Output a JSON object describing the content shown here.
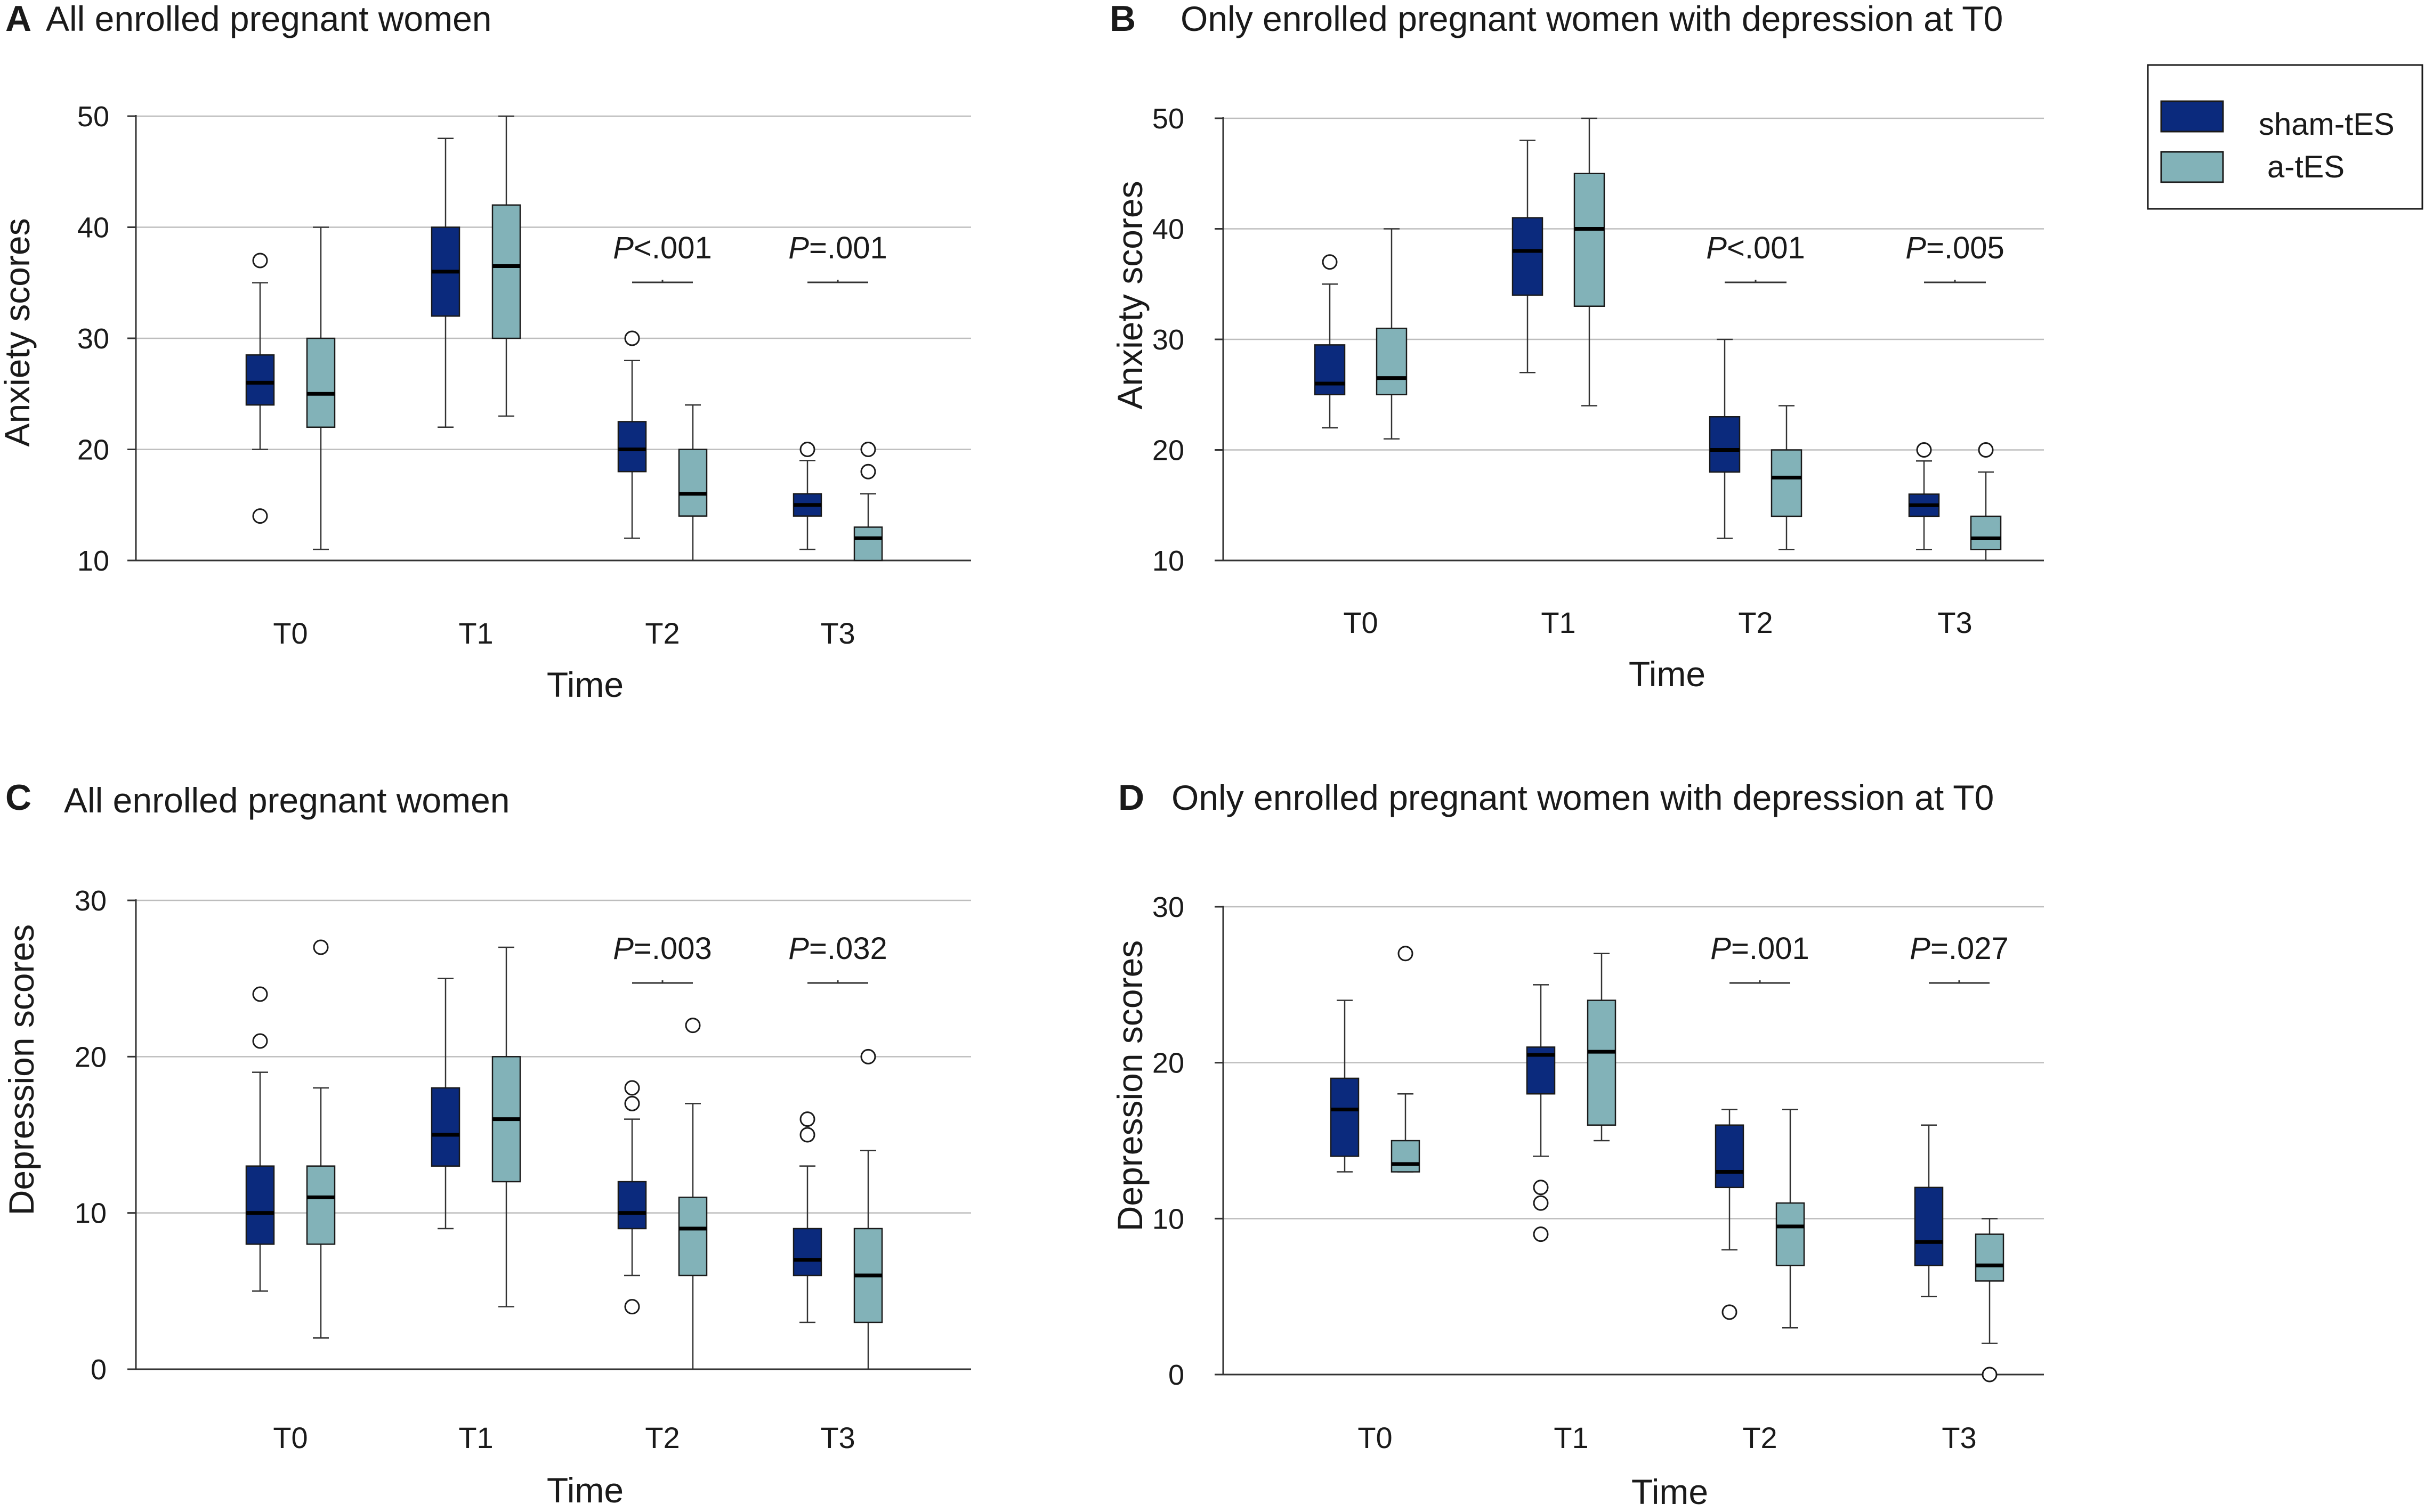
{
  "legend": {
    "items": [
      {
        "name": "sham-tES",
        "color": "#0b2a7d"
      },
      {
        "name": "a-tES",
        "color": "#82b2b8"
      }
    ]
  },
  "chart_data": [
    {
      "panel": "A",
      "type": "boxplot",
      "title": "All enrolled pregnant women",
      "xlabel": "Time",
      "ylabel": "Anxiety scores",
      "categories": [
        "T0",
        "T1",
        "T2",
        "T3"
      ],
      "ylim": [
        10,
        50
      ],
      "yticks": [
        10,
        20,
        30,
        40,
        50
      ],
      "series": [
        {
          "name": "sham-tES",
          "color": "#0b2a7d",
          "boxes": [
            {
              "min": 20,
              "q1": 24,
              "median": 26,
              "q3": 28.5,
              "max": 35,
              "outliers": [
                37,
                14
              ]
            },
            {
              "min": 22,
              "q1": 32,
              "median": 36,
              "q3": 40,
              "max": 48,
              "outliers": []
            },
            {
              "min": 12,
              "q1": 18,
              "median": 20,
              "q3": 22.5,
              "max": 28,
              "outliers": [
                30
              ]
            },
            {
              "min": 11,
              "q1": 14,
              "median": 15,
              "q3": 16,
              "max": 19,
              "outliers": [
                20
              ]
            }
          ]
        },
        {
          "name": "a-tES",
          "color": "#82b2b8",
          "boxes": [
            {
              "min": 11,
              "q1": 22,
              "median": 25,
              "q3": 30,
              "max": 40,
              "outliers": []
            },
            {
              "min": 23,
              "q1": 30,
              "median": 36.5,
              "q3": 42,
              "max": 50,
              "outliers": []
            },
            {
              "min": 10,
              "q1": 14,
              "median": 16,
              "q3": 20,
              "max": 24,
              "outliers": []
            },
            {
              "min": 10,
              "q1": 10,
              "median": 12,
              "q3": 13,
              "max": 16,
              "outliers": [
                20,
                18
              ]
            }
          ]
        }
      ],
      "annotations": [
        {
          "category_index": 2,
          "prefix": "P",
          "text": "<.001"
        },
        {
          "category_index": 3,
          "prefix": "P",
          "text": "=.001"
        }
      ]
    },
    {
      "panel": "B",
      "type": "boxplot",
      "title": "Only enrolled pregnant women with depression at T0",
      "xlabel": "Time",
      "ylabel": "Anxiety scores",
      "categories": [
        "T0",
        "T1",
        "T2",
        "T3"
      ],
      "ylim": [
        10,
        50
      ],
      "yticks": [
        10,
        20,
        30,
        40,
        50
      ],
      "series": [
        {
          "name": "sham-tES",
          "color": "#0b2a7d",
          "boxes": [
            {
              "min": 22,
              "q1": 25,
              "median": 26,
              "q3": 29.5,
              "max": 35,
              "outliers": [
                37
              ]
            },
            {
              "min": 27,
              "q1": 34,
              "median": 38,
              "q3": 41,
              "max": 48,
              "outliers": []
            },
            {
              "min": 12,
              "q1": 18,
              "median": 20,
              "q3": 23,
              "max": 30,
              "outliers": []
            },
            {
              "min": 11,
              "q1": 14,
              "median": 15,
              "q3": 16,
              "max": 19,
              "outliers": [
                20
              ]
            }
          ]
        },
        {
          "name": "a-tES",
          "color": "#82b2b8",
          "boxes": [
            {
              "min": 21,
              "q1": 25,
              "median": 26.5,
              "q3": 31,
              "max": 40,
              "outliers": []
            },
            {
              "min": 24,
              "q1": 33,
              "median": 40,
              "q3": 45,
              "max": 50,
              "outliers": []
            },
            {
              "min": 11,
              "q1": 14,
              "median": 17.5,
              "q3": 20,
              "max": 24,
              "outliers": []
            },
            {
              "min": 10,
              "q1": 11,
              "median": 12,
              "q3": 14,
              "max": 18,
              "outliers": [
                20
              ]
            }
          ]
        }
      ],
      "annotations": [
        {
          "category_index": 2,
          "prefix": "P",
          "text": "<.001"
        },
        {
          "category_index": 3,
          "prefix": "P",
          "text": "=.005"
        }
      ]
    },
    {
      "panel": "C",
      "type": "boxplot",
      "title": "All enrolled pregnant women",
      "xlabel": "Time",
      "ylabel": "Depression scores",
      "categories": [
        "T0",
        "T1",
        "T2",
        "T3"
      ],
      "ylim": [
        0,
        30
      ],
      "yticks": [
        0,
        10,
        20,
        30
      ],
      "series": [
        {
          "name": "sham-tES",
          "color": "#0b2a7d",
          "boxes": [
            {
              "min": 5,
              "q1": 8,
              "median": 10,
              "q3": 13,
              "max": 19,
              "outliers": [
                24,
                21
              ]
            },
            {
              "min": 9,
              "q1": 13,
              "median": 15,
              "q3": 18,
              "max": 25,
              "outliers": []
            },
            {
              "min": 6,
              "q1": 9,
              "median": 10,
              "q3": 12,
              "max": 16,
              "outliers": [
                18,
                17,
                4
              ]
            },
            {
              "min": 3,
              "q1": 6,
              "median": 7,
              "q3": 9,
              "max": 13,
              "outliers": [
                16,
                15
              ]
            }
          ]
        },
        {
          "name": "a-tES",
          "color": "#82b2b8",
          "boxes": [
            {
              "min": 2,
              "q1": 8,
              "median": 11,
              "q3": 13,
              "max": 18,
              "outliers": [
                27
              ]
            },
            {
              "min": 4,
              "q1": 12,
              "median": 16,
              "q3": 20,
              "max": 27,
              "outliers": []
            },
            {
              "min": 0,
              "q1": 6,
              "median": 9,
              "q3": 11,
              "max": 17,
              "outliers": [
                22
              ]
            },
            {
              "min": 0,
              "q1": 3,
              "median": 6,
              "q3": 9,
              "max": 14,
              "outliers": [
                20
              ]
            }
          ]
        }
      ],
      "annotations": [
        {
          "category_index": 2,
          "prefix": "P",
          "text": "=.003"
        },
        {
          "category_index": 3,
          "prefix": "P",
          "text": "=.032"
        }
      ]
    },
    {
      "panel": "D",
      "type": "boxplot",
      "title": "Only enrolled pregnant women with depression at T0",
      "xlabel": "Time",
      "ylabel": "Depression scores",
      "categories": [
        "T0",
        "T1",
        "T2",
        "T3"
      ],
      "ylim": [
        0,
        30
      ],
      "yticks": [
        0,
        10,
        20,
        30
      ],
      "series": [
        {
          "name": "sham-tES",
          "color": "#0b2a7d",
          "boxes": [
            {
              "min": 13,
              "q1": 14,
              "median": 17,
              "q3": 19,
              "max": 24,
              "outliers": []
            },
            {
              "min": 14,
              "q1": 18,
              "median": 20.5,
              "q3": 21,
              "max": 25,
              "outliers": [
                12,
                11,
                9
              ]
            },
            {
              "min": 8,
              "q1": 12,
              "median": 13,
              "q3": 16,
              "max": 17,
              "outliers": [
                4
              ]
            },
            {
              "min": 5,
              "q1": 7,
              "median": 8.5,
              "q3": 12,
              "max": 16,
              "outliers": []
            }
          ]
        },
        {
          "name": "a-tES",
          "color": "#82b2b8",
          "boxes": [
            {
              "min": 13,
              "q1": 13,
              "median": 13.5,
              "q3": 15,
              "max": 18,
              "outliers": [
                27
              ]
            },
            {
              "min": 15,
              "q1": 16,
              "median": 20.7,
              "q3": 24,
              "max": 27,
              "outliers": []
            },
            {
              "min": 3,
              "q1": 7,
              "median": 9.5,
              "q3": 11,
              "max": 17,
              "outliers": []
            },
            {
              "min": 2,
              "q1": 6,
              "median": 7,
              "q3": 9,
              "max": 10,
              "outliers": [
                0
              ]
            }
          ]
        }
      ],
      "annotations": [
        {
          "category_index": 2,
          "prefix": "P",
          "text": "=.001"
        },
        {
          "category_index": 3,
          "prefix": "P",
          "text": "=.027"
        }
      ]
    }
  ]
}
